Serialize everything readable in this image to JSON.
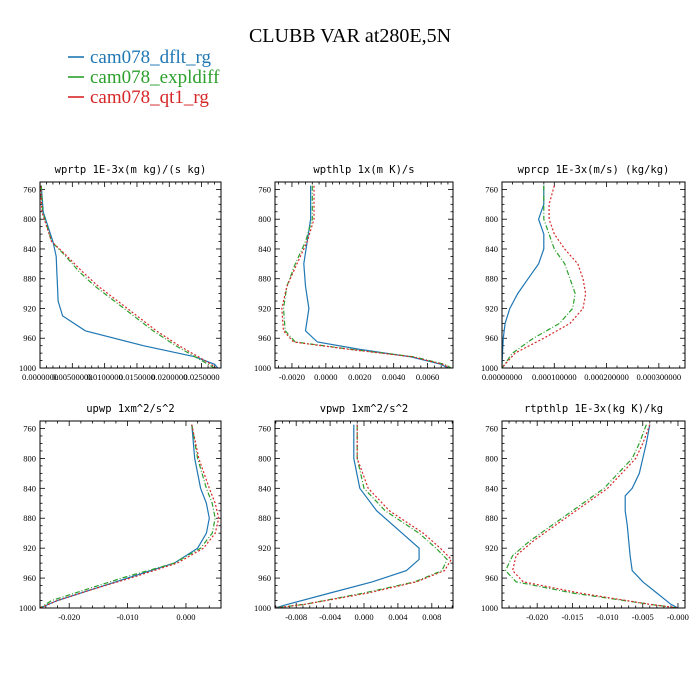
{
  "figure": {
    "title": "CLUBB VAR at280E,5N",
    "legend": [
      {
        "label": "cam078_dflt_rg",
        "color": "#1f77b4",
        "dash": "solid"
      },
      {
        "label": "cam078_expldiff",
        "color": "#2ca02c",
        "dash": "dashdot"
      },
      {
        "label": "cam078_qt1_rg",
        "color": "#d62728",
        "dash": "dotted"
      }
    ]
  },
  "chart_data": [
    {
      "type": "line",
      "title": "wprtp 1E-3x(m kg)/(s kg)",
      "xlim": [
        0.0,
        0.028
      ],
      "ylim": [
        1000,
        750
      ],
      "xticks": [
        0.0,
        0.005,
        0.01,
        0.015,
        0.02,
        0.025
      ],
      "xtick_labels": [
        "0.0000000",
        "0.00500000",
        "0.0100000",
        "0.0150000",
        "0.0200000",
        "0.0250000"
      ],
      "yticks": [
        760,
        800,
        840,
        880,
        920,
        960,
        1000
      ],
      "y": [
        755,
        790,
        830,
        850,
        870,
        890,
        910,
        930,
        950,
        970,
        985,
        995,
        1000
      ],
      "series": [
        {
          "name": "cam078_dflt_rg",
          "color": "#1f77b4",
          "dash": "solid",
          "x": [
            0.0002,
            0.0005,
            0.002,
            0.0025,
            0.0026,
            0.0027,
            0.0028,
            0.0035,
            0.007,
            0.016,
            0.024,
            0.027,
            0.0275
          ]
        },
        {
          "name": "cam078_expldiff",
          "color": "#2ca02c",
          "dash": "dashdot",
          "x": [
            0.0002,
            0.0004,
            0.0018,
            0.004,
            0.006,
            0.0085,
            0.0115,
            0.0145,
            0.0175,
            0.021,
            0.024,
            0.026,
            0.027
          ]
        },
        {
          "name": "cam078_qt1_rg",
          "color": "#d62728",
          "dash": "dotted",
          "x": [
            0.0001,
            0.0003,
            0.0018,
            0.0042,
            0.0065,
            0.009,
            0.012,
            0.015,
            0.018,
            0.0215,
            0.0245,
            0.0265,
            0.0272
          ]
        }
      ]
    },
    {
      "type": "line",
      "title": "wpthlp 1x(m K)/s",
      "xlim": [
        -0.003,
        0.0075
      ],
      "ylim": [
        1000,
        750
      ],
      "xticks": [
        -0.002,
        0.0,
        0.002,
        0.004,
        0.006
      ],
      "xtick_labels": [
        "-0.0020",
        "0.0000",
        "0.0020",
        "0.0040",
        "0.0060"
      ],
      "yticks": [
        760,
        800,
        840,
        880,
        920,
        960,
        1000
      ],
      "y": [
        755,
        800,
        830,
        860,
        890,
        920,
        950,
        965,
        975,
        985,
        995,
        1000
      ],
      "series": [
        {
          "name": "cam078_dflt_rg",
          "color": "#1f77b4",
          "dash": "solid",
          "x": [
            -0.0009,
            -0.0009,
            -0.0011,
            -0.0013,
            -0.0012,
            -0.001,
            -0.0012,
            -0.0005,
            0.002,
            0.005,
            0.0068,
            0.0072
          ]
        },
        {
          "name": "cam078_expldiff",
          "color": "#2ca02c",
          "dash": "dashdot",
          "x": [
            -0.0008,
            -0.0008,
            -0.0012,
            -0.0018,
            -0.0023,
            -0.0025,
            -0.0024,
            -0.0018,
            0.0015,
            0.0052,
            0.007,
            0.0074
          ]
        },
        {
          "name": "cam078_qt1_rg",
          "color": "#d62728",
          "dash": "dotted",
          "x": [
            -0.0007,
            -0.0007,
            -0.0011,
            -0.0017,
            -0.0023,
            -0.0026,
            -0.0025,
            -0.0019,
            0.0014,
            0.0051,
            0.0069,
            0.0073
          ]
        }
      ]
    },
    {
      "type": "line",
      "title": "wprcp 1E-3x(m/s) (kg/kg)",
      "xlim": [
        0.0,
        0.00035
      ],
      "ylim": [
        1000,
        750
      ],
      "xticks": [
        0.0,
        0.0001,
        0.0002,
        0.0003
      ],
      "xtick_labels": [
        "0.00000000",
        "0.000100000",
        "0.000200000",
        "0.000300000"
      ],
      "yticks": [
        760,
        800,
        840,
        880,
        920,
        960,
        1000
      ],
      "y": [
        755,
        780,
        800,
        820,
        840,
        860,
        880,
        900,
        920,
        940,
        960,
        980,
        995,
        1000
      ],
      "series": [
        {
          "name": "cam078_dflt_rg",
          "color": "#1f77b4",
          "dash": "solid",
          "x": [
            8e-05,
            8e-05,
            7e-05,
            8e-05,
            8e-05,
            7e-05,
            5e-05,
            3e-05,
            1.5e-05,
            6e-06,
            2.5e-06,
            1e-06,
            0.0,
            0.0
          ]
        },
        {
          "name": "cam078_expldiff",
          "color": "#2ca02c",
          "dash": "dashdot",
          "x": [
            8e-05,
            8e-05,
            8e-05,
            9e-05,
            0.0001,
            0.00012,
            0.00013,
            0.00014,
            0.000135,
            0.00011,
            6e-05,
            2e-05,
            5e-06,
            0.0
          ]
        },
        {
          "name": "cam078_qt1_rg",
          "color": "#d62728",
          "dash": "dotted",
          "x": [
            0.0001,
            9e-05,
            9e-05,
            0.0001,
            0.00012,
            0.000145,
            0.000155,
            0.00016,
            0.000155,
            0.00013,
            8e-05,
            2.5e-05,
            6e-06,
            0.0
          ]
        }
      ]
    },
    {
      "type": "line",
      "title": "upwp 1xm^2/s^2",
      "xlim": [
        -0.025,
        0.006
      ],
      "ylim": [
        1000,
        750
      ],
      "xticks": [
        -0.02,
        -0.01,
        0.0
      ],
      "xtick_labels": [
        "-0.020",
        "-0.010",
        "0.000"
      ],
      "yticks": [
        760,
        800,
        840,
        880,
        920,
        960,
        1000
      ],
      "y": [
        755,
        800,
        840,
        860,
        880,
        900,
        920,
        940,
        960,
        975,
        990,
        1000
      ],
      "series": [
        {
          "name": "cam078_dflt_rg",
          "color": "#1f77b4",
          "dash": "solid",
          "x": [
            0.001,
            0.0015,
            0.0025,
            0.0035,
            0.004,
            0.0035,
            0.002,
            -0.002,
            -0.01,
            -0.016,
            -0.022,
            -0.025
          ]
        },
        {
          "name": "cam078_expldiff",
          "color": "#2ca02c",
          "dash": "dashdot",
          "x": [
            0.001,
            0.002,
            0.0035,
            0.0045,
            0.005,
            0.0045,
            0.0025,
            -0.002,
            -0.011,
            -0.017,
            -0.023,
            -0.025
          ]
        },
        {
          "name": "cam078_qt1_rg",
          "color": "#d62728",
          "dash": "dotted",
          "x": [
            0.001,
            0.0022,
            0.004,
            0.005,
            0.0056,
            0.005,
            0.003,
            -0.0015,
            -0.0095,
            -0.016,
            -0.022,
            -0.025
          ]
        }
      ]
    },
    {
      "type": "line",
      "title": "vpwp 1xm^2/s^2",
      "xlim": [
        -0.0105,
        0.0105
      ],
      "ylim": [
        1000,
        750
      ],
      "xticks": [
        -0.008,
        -0.004,
        0.0,
        0.004,
        0.008
      ],
      "xtick_labels": [
        "-0.008",
        "-0.004",
        "0.000",
        "0.004",
        "0.008"
      ],
      "yticks": [
        760,
        800,
        840,
        880,
        920,
        960,
        1000
      ],
      "y": [
        755,
        800,
        840,
        870,
        900,
        920,
        935,
        950,
        965,
        980,
        995,
        1000
      ],
      "series": [
        {
          "name": "cam078_dflt_rg",
          "color": "#1f77b4",
          "dash": "solid",
          "x": [
            -0.0012,
            -0.0012,
            -0.0005,
            0.0015,
            0.0045,
            0.0065,
            0.0065,
            0.005,
            0.001,
            -0.004,
            -0.009,
            -0.0105
          ]
        },
        {
          "name": "cam078_expldiff",
          "color": "#2ca02c",
          "dash": "dashdot",
          "x": [
            -0.0008,
            -0.0008,
            0.0,
            0.0025,
            0.0065,
            0.0085,
            0.0098,
            0.0092,
            0.006,
            0.0,
            -0.007,
            -0.0105
          ]
        },
        {
          "name": "cam078_qt1_rg",
          "color": "#d62728",
          "dash": "dotted",
          "x": [
            -0.0008,
            -0.0008,
            0.0005,
            0.003,
            0.007,
            0.009,
            0.0103,
            0.0095,
            0.0062,
            0.0005,
            -0.007,
            -0.0105
          ]
        }
      ]
    },
    {
      "type": "line",
      "title": "rtpthlp 1E-3x(kg K)/kg",
      "xlim": [
        -0.025,
        0.001
      ],
      "ylim": [
        1000,
        750
      ],
      "xticks": [
        -0.02,
        -0.015,
        -0.01,
        -0.005,
        0.0
      ],
      "xtick_labels": [
        "-0.020",
        "-0.015",
        "-0.010",
        "-0.005",
        "-0.000"
      ],
      "yticks": [
        760,
        800,
        840,
        880,
        920,
        960,
        1000
      ],
      "y": [
        755,
        780,
        800,
        820,
        840,
        850,
        870,
        890,
        910,
        930,
        950,
        965,
        980,
        995,
        1000
      ],
      "series": [
        {
          "name": "cam078_dflt_rg",
          "color": "#1f77b4",
          "dash": "solid",
          "x": [
            -0.004,
            -0.0045,
            -0.005,
            -0.0055,
            -0.0065,
            -0.0075,
            -0.0075,
            -0.0072,
            -0.007,
            -0.0068,
            -0.0065,
            -0.005,
            -0.003,
            -0.001,
            0.0
          ]
        },
        {
          "name": "cam078_expldiff",
          "color": "#2ca02c",
          "dash": "dashdot",
          "x": [
            -0.0045,
            -0.0055,
            -0.0065,
            -0.0085,
            -0.0105,
            -0.012,
            -0.015,
            -0.018,
            -0.021,
            -0.0235,
            -0.0245,
            -0.023,
            -0.015,
            -0.004,
            0.0
          ]
        },
        {
          "name": "cam078_qt1_rg",
          "color": "#d62728",
          "dash": "dotted",
          "x": [
            -0.004,
            -0.005,
            -0.006,
            -0.008,
            -0.01,
            -0.0115,
            -0.0145,
            -0.0175,
            -0.0205,
            -0.023,
            -0.0235,
            -0.022,
            -0.014,
            -0.004,
            0.0
          ]
        }
      ]
    }
  ]
}
